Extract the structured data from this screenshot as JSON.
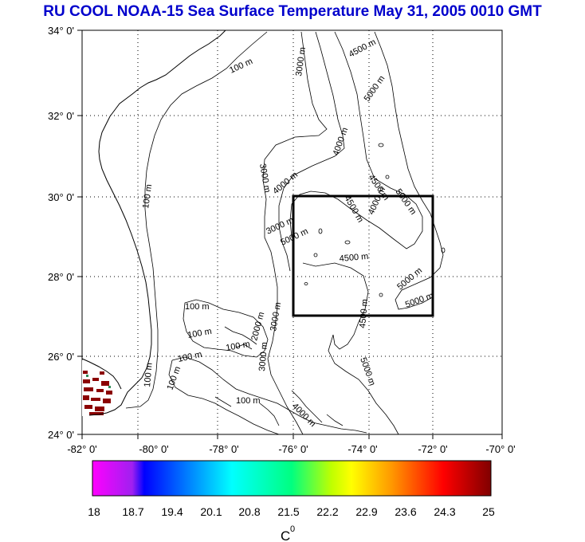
{
  "title": "RU COOL  NOAA-15 Sea Surface Temperature May 31, 2005 0010 GMT",
  "axes": {
    "lat_ticks": [
      "34° 0'",
      "32° 0'",
      "30° 0'",
      "28° 0'",
      "26° 0'",
      "24° 0'"
    ],
    "lon_ticks": [
      "-82° 0'",
      "-80° 0'",
      "-78° 0'",
      "-76° 0'",
      "-74° 0'",
      "-72° 0'",
      "-70° 0'"
    ]
  },
  "contour_labels": [
    {
      "text": "100 m"
    },
    {
      "text": "100 m"
    },
    {
      "text": "100 m"
    },
    {
      "text": "100 m"
    },
    {
      "text": "100 m"
    },
    {
      "text": "100 m"
    },
    {
      "text": "100 m"
    },
    {
      "text": "100 m"
    },
    {
      "text": "100 m"
    },
    {
      "text": "3000 m"
    },
    {
      "text": "4500 m"
    },
    {
      "text": "5000 m"
    },
    {
      "text": "4000 m"
    },
    {
      "text": "3000 m"
    },
    {
      "text": "4000 m"
    },
    {
      "text": "4500 m"
    },
    {
      "text": "5000 m"
    },
    {
      "text": "4500 m"
    },
    {
      "text": "4000 m"
    },
    {
      "text": "3000 m"
    },
    {
      "text": "5000 m"
    },
    {
      "text": "4500 m"
    },
    {
      "text": "5000 m"
    },
    {
      "text": "5000 m"
    },
    {
      "text": "4500 m"
    },
    {
      "text": "3000 m"
    },
    {
      "text": "2000 m"
    },
    {
      "text": "3000 m"
    },
    {
      "text": "4000 m"
    },
    {
      "text": "5000 m"
    }
  ],
  "colorbar": {
    "labels": [
      "18",
      "18.7",
      "19.4",
      "20.1",
      "20.8",
      "21.5",
      "22.2",
      "22.9",
      "23.6",
      "24.3",
      "25"
    ],
    "unit": "C",
    "unit_superscript": "0",
    "colors": [
      "#ff00ff",
      "#0000ff",
      "#00ffff",
      "#00ff00",
      "#ffff00",
      "#ff8000",
      "#ff0000",
      "#800000"
    ]
  },
  "region_box": {
    "lon_min": -76,
    "lon_max": -72,
    "lat_min": 27,
    "lat_max": 30
  }
}
